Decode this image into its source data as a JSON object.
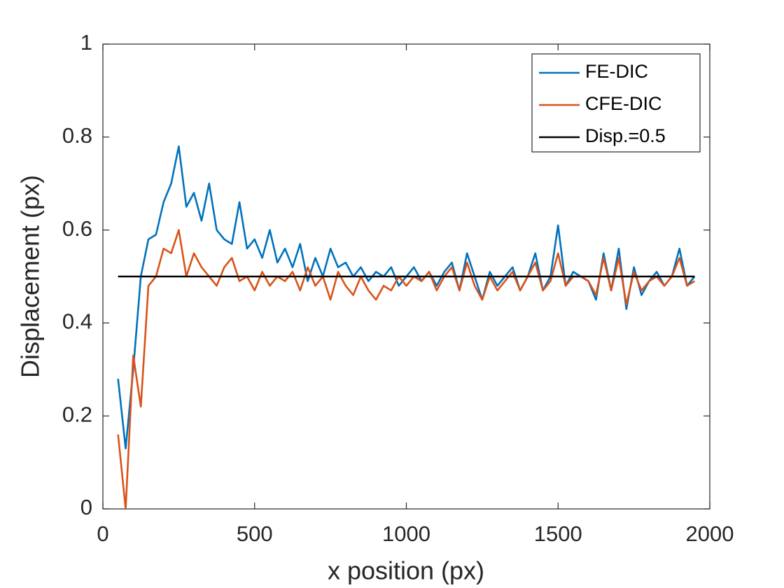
{
  "chart_data": {
    "type": "line",
    "xlabel": "x position (px)",
    "ylabel": "Displacement (px)",
    "xlim": [
      0,
      2000
    ],
    "ylim": [
      0,
      1
    ],
    "xticks": [
      0,
      500,
      1000,
      1500,
      2000
    ],
    "yticks": [
      0,
      0.2,
      0.4,
      0.6,
      0.8,
      1
    ],
    "grid": false,
    "legend": "northeast",
    "x": [
      50,
      75,
      100,
      125,
      150,
      175,
      200,
      225,
      250,
      275,
      300,
      325,
      350,
      375,
      400,
      425,
      450,
      475,
      500,
      525,
      550,
      575,
      600,
      625,
      650,
      675,
      700,
      725,
      750,
      775,
      800,
      825,
      850,
      875,
      900,
      925,
      950,
      975,
      1000,
      1025,
      1050,
      1075,
      1100,
      1125,
      1150,
      1175,
      1200,
      1225,
      1250,
      1275,
      1300,
      1325,
      1350,
      1375,
      1400,
      1425,
      1450,
      1475,
      1500,
      1525,
      1550,
      1575,
      1600,
      1625,
      1650,
      1675,
      1700,
      1725,
      1750,
      1775,
      1800,
      1825,
      1850,
      1875,
      1900,
      1925,
      1950
    ],
    "series": [
      {
        "name": "FE-DIC",
        "color": "#0072bd",
        "values": [
          0.28,
          0.13,
          0.3,
          0.5,
          0.58,
          0.59,
          0.66,
          0.7,
          0.78,
          0.65,
          0.68,
          0.62,
          0.7,
          0.6,
          0.58,
          0.57,
          0.66,
          0.56,
          0.58,
          0.54,
          0.6,
          0.53,
          0.56,
          0.52,
          0.57,
          0.49,
          0.54,
          0.5,
          0.56,
          0.52,
          0.53,
          0.5,
          0.52,
          0.49,
          0.51,
          0.5,
          0.52,
          0.48,
          0.5,
          0.52,
          0.49,
          0.51,
          0.48,
          0.51,
          0.53,
          0.47,
          0.55,
          0.5,
          0.45,
          0.51,
          0.48,
          0.5,
          0.52,
          0.47,
          0.5,
          0.55,
          0.47,
          0.5,
          0.61,
          0.48,
          0.51,
          0.5,
          0.49,
          0.45,
          0.55,
          0.47,
          0.56,
          0.43,
          0.52,
          0.46,
          0.49,
          0.51,
          0.48,
          0.5,
          0.56,
          0.48,
          0.5
        ]
      },
      {
        "name": "CFE-DIC",
        "color": "#d95319",
        "values": [
          0.16,
          0.0,
          0.33,
          0.22,
          0.48,
          0.5,
          0.56,
          0.55,
          0.6,
          0.5,
          0.55,
          0.52,
          0.5,
          0.48,
          0.52,
          0.54,
          0.49,
          0.5,
          0.47,
          0.51,
          0.48,
          0.5,
          0.49,
          0.51,
          0.47,
          0.52,
          0.48,
          0.5,
          0.45,
          0.51,
          0.48,
          0.46,
          0.5,
          0.47,
          0.45,
          0.48,
          0.47,
          0.5,
          0.48,
          0.5,
          0.49,
          0.51,
          0.47,
          0.5,
          0.52,
          0.47,
          0.53,
          0.48,
          0.45,
          0.5,
          0.47,
          0.49,
          0.51,
          0.47,
          0.5,
          0.53,
          0.47,
          0.49,
          0.55,
          0.48,
          0.5,
          0.5,
          0.49,
          0.46,
          0.54,
          0.47,
          0.54,
          0.44,
          0.51,
          0.47,
          0.49,
          0.5,
          0.48,
          0.5,
          0.54,
          0.48,
          0.49
        ]
      },
      {
        "name": "Disp.=0.5",
        "color": "#000000",
        "x": [
          50,
          1950
        ],
        "values": [
          0.5,
          0.5
        ]
      }
    ]
  }
}
